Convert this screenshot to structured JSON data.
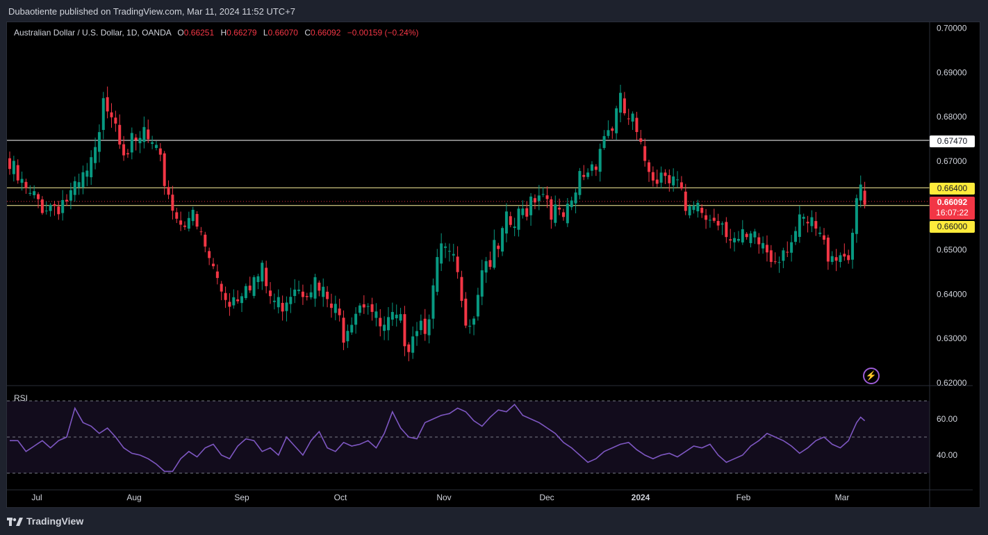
{
  "header": {
    "publisher_text": "Dubaotiente published on TradingView.com, Mar 11, 2024 11:52 UTC+7"
  },
  "legend": {
    "symbol": "Australian Dollar / U.S. Dollar, 1D, OANDA",
    "o_label": "O",
    "o_value": "0.66251",
    "h_label": "H",
    "h_value": "0.66279",
    "l_label": "L",
    "l_value": "0.66070",
    "c_label": "C",
    "c_value": "0.66092",
    "change": "−0.00159 (−0.24%)"
  },
  "rsi": {
    "label": "RSI"
  },
  "footer": {
    "brand": "TradingView"
  },
  "price_tags": {
    "resistance": "0.67470",
    "upper": "0.66400",
    "last": "0.66092",
    "countdown": "16:07:22",
    "lower": "0.66000"
  },
  "colors": {
    "up": "#089981",
    "down": "#f23645",
    "rsi_line": "#7e57c2",
    "level_tag_yellow": "#ffeb3b",
    "background": "#000000"
  },
  "chart_data": {
    "type": "candlestick",
    "symbol": "AUDUSD",
    "timeframe": "1D",
    "price_axis": {
      "ticks": [
        "0.70000",
        "0.69000",
        "0.68000",
        "0.67000",
        "0.65000",
        "0.64000",
        "0.63000",
        "0.62000"
      ],
      "range": [
        0.62,
        0.7
      ]
    },
    "time_axis": {
      "ticks": [
        "Jul",
        "Aug",
        "Sep",
        "Oct",
        "Nov",
        "Dec",
        "2024",
        "Feb",
        "Mar"
      ]
    },
    "horizontal_levels": [
      0.6747,
      0.664,
      0.66
    ],
    "last_price": 0.66092,
    "close_anchors": [
      [
        0,
        0.67
      ],
      [
        5,
        0.663
      ],
      [
        10,
        0.662
      ],
      [
        16,
        0.664
      ],
      [
        20,
        0.67
      ],
      [
        22,
        0.676
      ],
      [
        23,
        0.688
      ],
      [
        26,
        0.682
      ],
      [
        28,
        0.676
      ],
      [
        31,
        0.674
      ],
      [
        33,
        0.678
      ],
      [
        35,
        0.674
      ],
      [
        38,
        0.668
      ],
      [
        41,
        0.659
      ],
      [
        44,
        0.66
      ],
      [
        46,
        0.656
      ],
      [
        48,
        0.652
      ],
      [
        50,
        0.647
      ],
      [
        52,
        0.643
      ],
      [
        54,
        0.641
      ],
      [
        56,
        0.642
      ],
      [
        58,
        0.646
      ],
      [
        60,
        0.645
      ],
      [
        62,
        0.646
      ],
      [
        64,
        0.641
      ],
      [
        66,
        0.639
      ],
      [
        68,
        0.642
      ],
      [
        70,
        0.645
      ],
      [
        72,
        0.644
      ],
      [
        74,
        0.645
      ],
      [
        76,
        0.642
      ],
      [
        78,
        0.64
      ],
      [
        80,
        0.637
      ],
      [
        82,
        0.634
      ],
      [
        84,
        0.638
      ],
      [
        86,
        0.641
      ],
      [
        88,
        0.641
      ],
      [
        90,
        0.635
      ],
      [
        92,
        0.633
      ],
      [
        94,
        0.635
      ],
      [
        96,
        0.634
      ],
      [
        98,
        0.632
      ],
      [
        100,
        0.636
      ],
      [
        102,
        0.636
      ],
      [
        104,
        0.642
      ],
      [
        106,
        0.652
      ],
      [
        108,
        0.649
      ],
      [
        110,
        0.646
      ],
      [
        111,
        0.638
      ],
      [
        114,
        0.638
      ],
      [
        116,
        0.649
      ],
      [
        118,
        0.65
      ],
      [
        120,
        0.651
      ],
      [
        122,
        0.657
      ],
      [
        124,
        0.657
      ],
      [
        126,
        0.66
      ],
      [
        128,
        0.664
      ],
      [
        130,
        0.666
      ],
      [
        132,
        0.664
      ],
      [
        134,
        0.66
      ],
      [
        135,
        0.658
      ],
      [
        138,
        0.66
      ],
      [
        140,
        0.668
      ],
      [
        142,
        0.67
      ],
      [
        144,
        0.673
      ],
      [
        146,
        0.678
      ],
      [
        148,
        0.68
      ],
      [
        150,
        0.684
      ],
      [
        152,
        0.681
      ],
      [
        153,
        0.68
      ],
      [
        155,
        0.673
      ],
      [
        157,
        0.671
      ],
      [
        159,
        0.669
      ],
      [
        161,
        0.67
      ],
      [
        163,
        0.67
      ],
      [
        165,
        0.664
      ],
      [
        166,
        0.658
      ],
      [
        168,
        0.66
      ],
      [
        170,
        0.66
      ],
      [
        172,
        0.659
      ],
      [
        175,
        0.659
      ],
      [
        177,
        0.656
      ],
      [
        179,
        0.653
      ],
      [
        182,
        0.653
      ],
      [
        185,
        0.653
      ],
      [
        187,
        0.65
      ],
      [
        189,
        0.652
      ],
      [
        192,
        0.655
      ],
      [
        195,
        0.657
      ],
      [
        198,
        0.656
      ],
      [
        200,
        0.652
      ],
      [
        202,
        0.652
      ],
      [
        204,
        0.651
      ],
      [
        206,
        0.652
      ],
      [
        208,
        0.66
      ],
      [
        209,
        0.665
      ],
      [
        210,
        0.661
      ]
    ],
    "rsi": {
      "levels": [
        70,
        50,
        30
      ],
      "ticks": [
        "60.00",
        "40.00"
      ],
      "anchors": [
        [
          0,
          48
        ],
        [
          2,
          48
        ],
        [
          4,
          42
        ],
        [
          6,
          45
        ],
        [
          8,
          48
        ],
        [
          10,
          44
        ],
        [
          12,
          48
        ],
        [
          14,
          50
        ],
        [
          16,
          66
        ],
        [
          18,
          58
        ],
        [
          20,
          56
        ],
        [
          22,
          52
        ],
        [
          24,
          55
        ],
        [
          26,
          50
        ],
        [
          28,
          44
        ],
        [
          30,
          41
        ],
        [
          32,
          40
        ],
        [
          34,
          38
        ],
        [
          36,
          35
        ],
        [
          38,
          31
        ],
        [
          40,
          31
        ],
        [
          42,
          38
        ],
        [
          44,
          42
        ],
        [
          46,
          39
        ],
        [
          48,
          44
        ],
        [
          50,
          46
        ],
        [
          52,
          40
        ],
        [
          54,
          38
        ],
        [
          56,
          45
        ],
        [
          58,
          49
        ],
        [
          60,
          48
        ],
        [
          62,
          42
        ],
        [
          64,
          44
        ],
        [
          66,
          40
        ],
        [
          68,
          50
        ],
        [
          70,
          45
        ],
        [
          72,
          40
        ],
        [
          74,
          48
        ],
        [
          76,
          53
        ],
        [
          78,
          44
        ],
        [
          80,
          42
        ],
        [
          82,
          47
        ],
        [
          84,
          45
        ],
        [
          86,
          46
        ],
        [
          88,
          48
        ],
        [
          90,
          44
        ],
        [
          92,
          52
        ],
        [
          94,
          64
        ],
        [
          96,
          55
        ],
        [
          98,
          50
        ],
        [
          100,
          49
        ],
        [
          102,
          58
        ],
        [
          104,
          60
        ],
        [
          106,
          62
        ],
        [
          108,
          63
        ],
        [
          110,
          66
        ],
        [
          112,
          64
        ],
        [
          114,
          59
        ],
        [
          116,
          56
        ],
        [
          118,
          61
        ],
        [
          120,
          65
        ],
        [
          122,
          64
        ],
        [
          124,
          68
        ],
        [
          126,
          62
        ],
        [
          128,
          60
        ],
        [
          130,
          58
        ],
        [
          132,
          55
        ],
        [
          134,
          52
        ],
        [
          136,
          47
        ],
        [
          138,
          44
        ],
        [
          140,
          40
        ],
        [
          142,
          36
        ],
        [
          144,
          38
        ],
        [
          146,
          42
        ],
        [
          148,
          44
        ],
        [
          150,
          46
        ],
        [
          152,
          47
        ],
        [
          154,
          43
        ],
        [
          156,
          40
        ],
        [
          158,
          38
        ],
        [
          160,
          40
        ],
        [
          162,
          41
        ],
        [
          164,
          39
        ],
        [
          166,
          42
        ],
        [
          168,
          45
        ],
        [
          170,
          44
        ],
        [
          172,
          46
        ],
        [
          174,
          40
        ],
        [
          176,
          36
        ],
        [
          178,
          38
        ],
        [
          180,
          40
        ],
        [
          182,
          45
        ],
        [
          184,
          48
        ],
        [
          186,
          52
        ],
        [
          188,
          50
        ],
        [
          190,
          48
        ],
        [
          192,
          45
        ],
        [
          194,
          41
        ],
        [
          196,
          44
        ],
        [
          198,
          48
        ],
        [
          200,
          50
        ],
        [
          202,
          46
        ],
        [
          204,
          44
        ],
        [
          206,
          48
        ],
        [
          208,
          58
        ],
        [
          209,
          61
        ],
        [
          210,
          59
        ]
      ]
    }
  }
}
